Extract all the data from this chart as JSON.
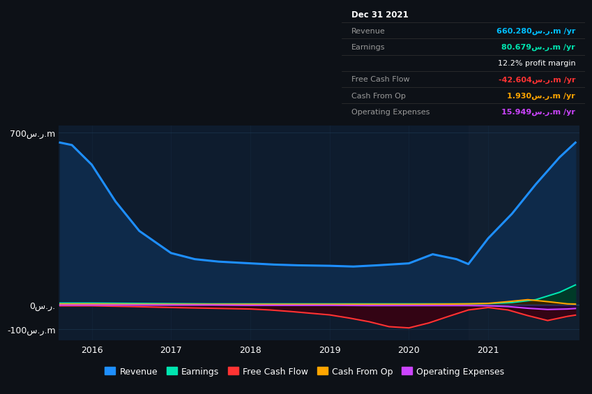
{
  "bg_color": "#0d1117",
  "plot_bg_color": "#0e1c2e",
  "info_bg_color": "#0a0a0a",
  "info_border_color": "#333333",
  "xlim_start": 2015.58,
  "xlim_end": 2022.15,
  "ylim_min": -145,
  "ylim_max": 730,
  "x_years": [
    2016,
    2017,
    2018,
    2019,
    2020,
    2021
  ],
  "ytick_vals": [
    -100,
    0,
    700
  ],
  "ytick_labels": [
    "-100س.ر.m",
    "0س.ر.",
    "700س.ر.m"
  ],
  "highlight_x_start": 2020.75,
  "info_box": {
    "date": "Dec 31 2021",
    "rows": [
      {
        "label": "Revenue",
        "value": "660.280س.ر.m /yr",
        "value_color": "#00bfff",
        "bold_value": true
      },
      {
        "label": "Earnings",
        "value": "80.679س.ر.m /yr",
        "value_color": "#00e5b0",
        "bold_value": true
      },
      {
        "label": "",
        "value": "12.2% profit margin",
        "value_color": "#ffffff",
        "bold_value": false
      },
      {
        "label": "Free Cash Flow",
        "value": "-42.604س.ر.m /yr",
        "value_color": "#ff3333",
        "bold_value": true
      },
      {
        "label": "Cash From Op",
        "value": "1.930س.ر.m /yr",
        "value_color": "#ffa500",
        "bold_value": true
      },
      {
        "label": "Operating Expenses",
        "value": "15.949س.ر.m /yr",
        "value_color": "#cc44ff",
        "bold_value": true
      }
    ]
  },
  "series": {
    "revenue": {
      "label": "Revenue",
      "color": "#1e8fff",
      "fill_color": "#0e2a4a",
      "linewidth": 2.2,
      "x": [
        2015.6,
        2015.75,
        2016.0,
        2016.3,
        2016.6,
        2017.0,
        2017.3,
        2017.6,
        2018.0,
        2018.3,
        2018.6,
        2019.0,
        2019.3,
        2019.6,
        2020.0,
        2020.3,
        2020.6,
        2020.75,
        2021.0,
        2021.3,
        2021.6,
        2021.9,
        2022.1
      ],
      "y": [
        660,
        650,
        570,
        420,
        300,
        210,
        185,
        175,
        168,
        163,
        160,
        158,
        155,
        160,
        168,
        205,
        185,
        165,
        270,
        370,
        490,
        600,
        660
      ]
    },
    "earnings": {
      "label": "Earnings",
      "color": "#00e5b0",
      "fill_color": "#003a28",
      "linewidth": 1.5,
      "x": [
        2015.6,
        2016.0,
        2016.5,
        2017.0,
        2017.5,
        2018.0,
        2018.5,
        2019.0,
        2019.5,
        2020.0,
        2020.5,
        2020.75,
        2021.0,
        2021.3,
        2021.6,
        2021.9,
        2022.1
      ],
      "y": [
        6,
        6,
        5,
        4,
        3,
        3,
        3,
        3,
        3,
        3,
        3,
        3,
        4,
        8,
        20,
        50,
        80
      ]
    },
    "fcf": {
      "label": "Free Cash Flow",
      "color": "#ff3333",
      "fill_color": "#3a0010",
      "linewidth": 1.5,
      "x": [
        2015.6,
        2016.0,
        2016.5,
        2017.0,
        2017.5,
        2018.0,
        2018.25,
        2018.5,
        2018.75,
        2019.0,
        2019.25,
        2019.5,
        2019.75,
        2020.0,
        2020.25,
        2020.5,
        2020.75,
        2021.0,
        2021.25,
        2021.5,
        2021.75,
        2022.0,
        2022.1
      ],
      "y": [
        -5,
        -5,
        -8,
        -12,
        -15,
        -18,
        -22,
        -28,
        -35,
        -42,
        -55,
        -70,
        -90,
        -95,
        -75,
        -48,
        -22,
        -12,
        -22,
        -45,
        -65,
        -48,
        -43
      ]
    },
    "cashop": {
      "label": "Cash From Op",
      "color": "#ffa500",
      "fill_color": "#3a2200",
      "linewidth": 1.5,
      "x": [
        2015.6,
        2016.0,
        2016.5,
        2017.0,
        2017.5,
        2018.0,
        2018.5,
        2019.0,
        2019.5,
        2020.0,
        2020.5,
        2020.75,
        2021.0,
        2021.25,
        2021.5,
        2021.75,
        2022.0,
        2022.1
      ],
      "y": [
        2,
        2,
        1,
        1,
        1,
        1,
        1,
        1,
        1,
        1,
        2,
        3,
        5,
        12,
        20,
        12,
        3,
        2
      ]
    },
    "opex": {
      "label": "Operating Expenses",
      "color": "#cc44ff",
      "fill_color": "#280040",
      "linewidth": 1.5,
      "x": [
        2015.6,
        2016.0,
        2016.5,
        2017.0,
        2017.5,
        2018.0,
        2018.5,
        2019.0,
        2019.5,
        2020.0,
        2020.5,
        2020.75,
        2021.0,
        2021.25,
        2021.5,
        2021.75,
        2022.0,
        2022.1
      ],
      "y": [
        -2,
        -2,
        -2,
        -2,
        -2,
        -3,
        -3,
        -3,
        -4,
        -4,
        -4,
        -4,
        -5,
        -8,
        -15,
        -20,
        -18,
        -16
      ]
    }
  },
  "legend_items": [
    {
      "label": "Revenue",
      "color": "#1e8fff"
    },
    {
      "label": "Earnings",
      "color": "#00e5b0"
    },
    {
      "label": "Free Cash Flow",
      "color": "#ff3333"
    },
    {
      "label": "Cash From Op",
      "color": "#ffa500"
    },
    {
      "label": "Operating Expenses",
      "color": "#cc44ff"
    }
  ]
}
